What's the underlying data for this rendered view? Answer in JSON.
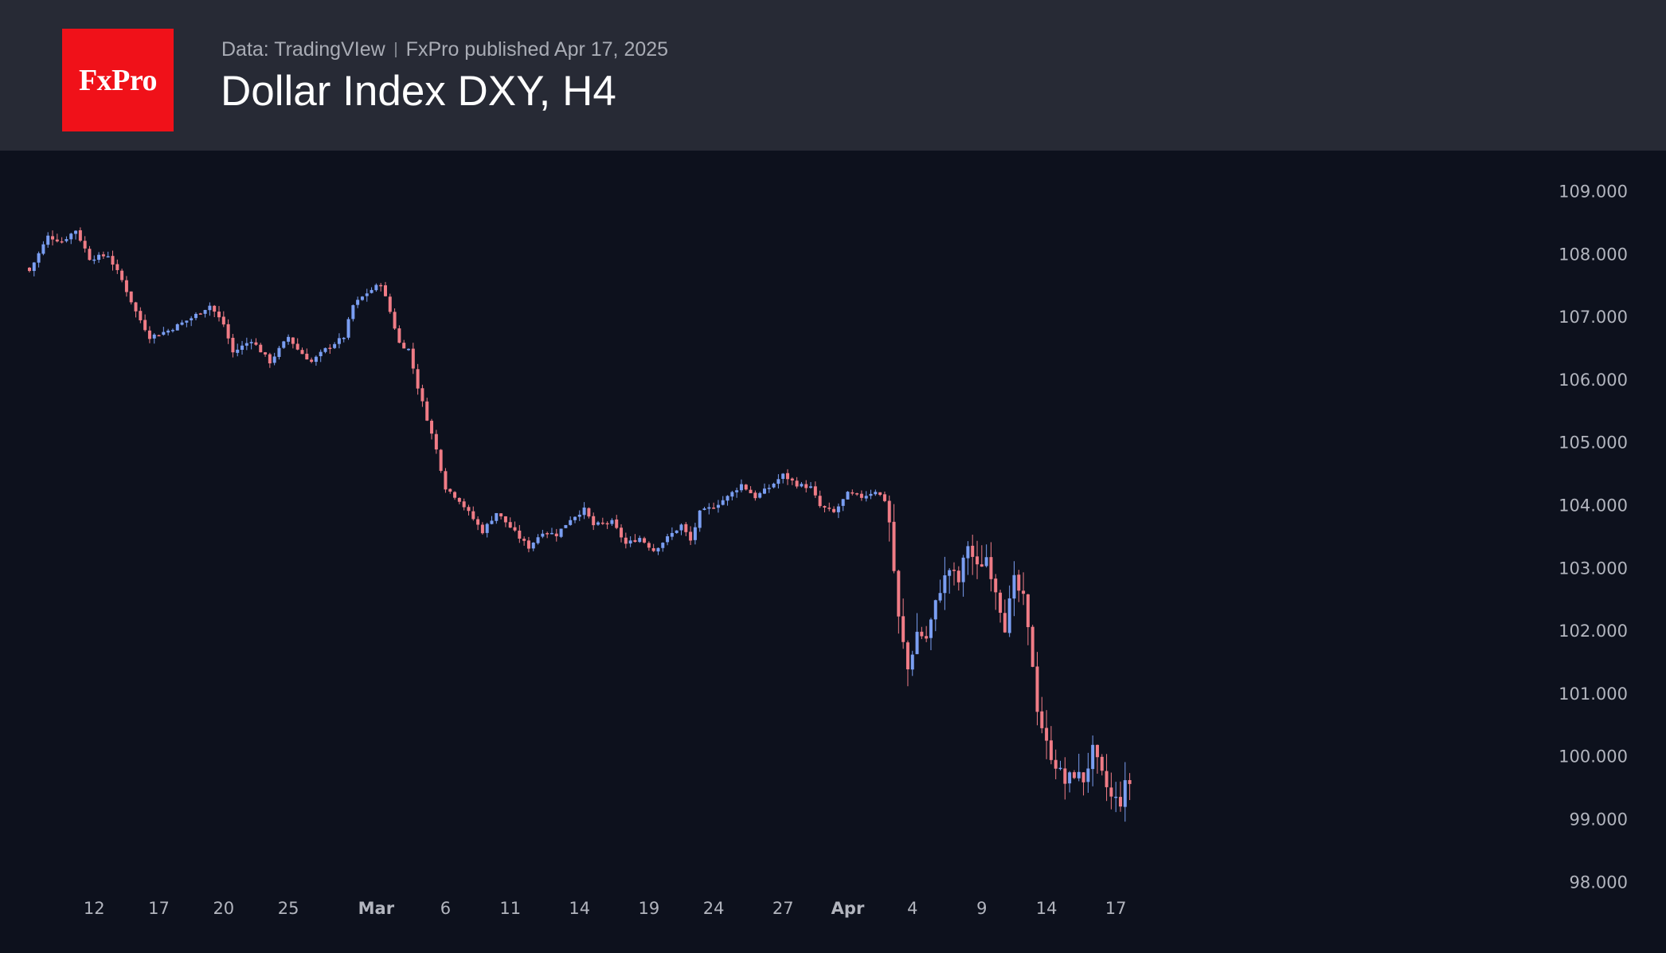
{
  "header": {
    "logo_text": "FxPro",
    "data_source": "Data: TradingVIew",
    "published": "FxPro published Apr 17, 2025",
    "title": "Dollar Index DXY, H4"
  },
  "colors": {
    "background": "#0d111d",
    "header_bg": "#272a35",
    "logo_bg": "#f01119",
    "up": "#7a9ef2",
    "down": "#f07c86",
    "axis_text": "#b2b5be"
  },
  "chart_data": {
    "type": "candlestick",
    "title": "Dollar Index DXY, H4",
    "ylim": [
      98.0,
      109.3
    ],
    "y_ticks": [
      "109.000",
      "108.000",
      "107.000",
      "106.000",
      "105.000",
      "104.000",
      "103.000",
      "102.000",
      "101.000",
      "100.000",
      "99.000",
      "98.000"
    ],
    "x_ticks": [
      {
        "label": "12",
        "bold": false,
        "index": 14
      },
      {
        "label": "17",
        "bold": false,
        "index": 28
      },
      {
        "label": "20",
        "bold": false,
        "index": 42
      },
      {
        "label": "25",
        "bold": false,
        "index": 56
      },
      {
        "label": "Mar",
        "bold": true,
        "index": 75
      },
      {
        "label": "6",
        "bold": false,
        "index": 90
      },
      {
        "label": "11",
        "bold": false,
        "index": 104
      },
      {
        "label": "14",
        "bold": false,
        "index": 119
      },
      {
        "label": "19",
        "bold": false,
        "index": 134
      },
      {
        "label": "24",
        "bold": false,
        "index": 148
      },
      {
        "label": "27",
        "bold": false,
        "index": 163
      },
      {
        "label": "Apr",
        "bold": true,
        "index": 177
      },
      {
        "label": "4",
        "bold": false,
        "index": 191
      },
      {
        "label": "9",
        "bold": false,
        "index": 206
      },
      {
        "label": "14",
        "bold": false,
        "index": 220
      },
      {
        "label": "17",
        "bold": false,
        "index": 235
      }
    ],
    "anchors": [
      [
        0,
        107.75
      ],
      [
        4,
        108.3
      ],
      [
        7,
        108.22
      ],
      [
        10,
        108.4
      ],
      [
        13,
        107.95
      ],
      [
        17,
        108.0
      ],
      [
        20,
        107.6
      ],
      [
        23,
        107.1
      ],
      [
        26,
        106.7
      ],
      [
        30,
        106.8
      ],
      [
        35,
        107.0
      ],
      [
        39,
        107.2
      ],
      [
        42,
        106.9
      ],
      [
        44,
        106.45
      ],
      [
        48,
        106.65
      ],
      [
        52,
        106.3
      ],
      [
        56,
        106.7
      ],
      [
        58,
        106.5
      ],
      [
        61,
        106.3
      ],
      [
        64,
        106.5
      ],
      [
        68,
        106.7
      ],
      [
        70,
        107.2
      ],
      [
        73,
        107.4
      ],
      [
        76,
        107.55
      ],
      [
        78,
        107.1
      ],
      [
        80,
        106.6
      ],
      [
        82,
        106.5
      ],
      [
        84,
        105.9
      ],
      [
        86,
        105.4
      ],
      [
        88,
        104.9
      ],
      [
        90,
        104.3
      ],
      [
        93,
        104.1
      ],
      [
        96,
        103.8
      ],
      [
        98,
        103.6
      ],
      [
        101,
        103.9
      ],
      [
        103,
        103.75
      ],
      [
        106,
        103.5
      ],
      [
        108,
        103.35
      ],
      [
        111,
        103.6
      ],
      [
        114,
        103.55
      ],
      [
        117,
        103.8
      ],
      [
        120,
        103.95
      ],
      [
        122,
        103.7
      ],
      [
        126,
        103.75
      ],
      [
        129,
        103.4
      ],
      [
        132,
        103.5
      ],
      [
        135,
        103.3
      ],
      [
        138,
        103.5
      ],
      [
        141,
        103.7
      ],
      [
        143,
        103.45
      ],
      [
        145,
        103.9
      ],
      [
        148,
        104.0
      ],
      [
        151,
        104.15
      ],
      [
        154,
        104.35
      ],
      [
        157,
        104.15
      ],
      [
        160,
        104.3
      ],
      [
        163,
        104.5
      ],
      [
        166,
        104.35
      ],
      [
        169,
        104.3
      ],
      [
        171,
        104.0
      ],
      [
        174,
        103.9
      ],
      [
        177,
        104.2
      ],
      [
        180,
        104.15
      ],
      [
        183,
        104.25
      ],
      [
        185,
        104.1
      ],
      [
        186,
        103.75
      ],
      [
        188,
        102.2
      ],
      [
        190,
        101.4
      ],
      [
        192,
        102.0
      ],
      [
        194,
        101.9
      ],
      [
        197,
        102.7
      ],
      [
        199,
        103.0
      ],
      [
        201,
        102.8
      ],
      [
        203,
        103.4
      ],
      [
        205,
        103.0
      ],
      [
        207,
        103.2
      ],
      [
        209,
        102.7
      ],
      [
        211,
        102.1
      ],
      [
        213,
        102.8
      ],
      [
        215,
        102.5
      ],
      [
        217,
        101.5
      ],
      [
        218,
        100.8
      ],
      [
        220,
        100.2
      ],
      [
        222,
        99.9
      ],
      [
        224,
        99.6
      ],
      [
        226,
        99.75
      ],
      [
        228,
        99.65
      ],
      [
        230,
        100.1
      ],
      [
        232,
        99.7
      ],
      [
        234,
        99.35
      ],
      [
        236,
        99.3
      ],
      [
        237,
        99.55
      ],
      [
        238,
        99.6
      ]
    ]
  }
}
